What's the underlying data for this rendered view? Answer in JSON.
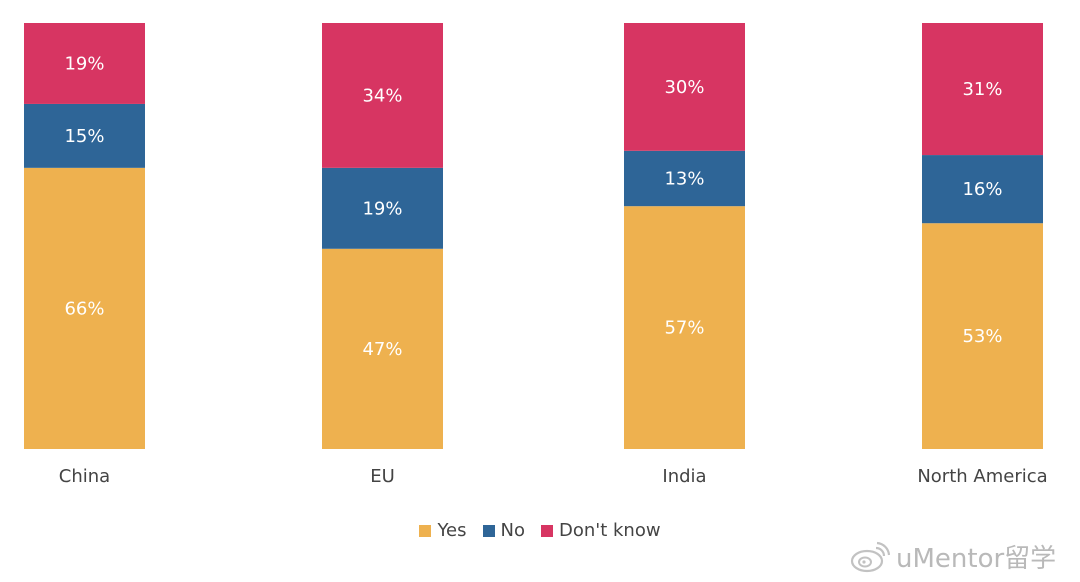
{
  "chart_data": {
    "type": "bar",
    "stacked": true,
    "percent": true,
    "categories": [
      "China",
      "EU",
      "India",
      "North America"
    ],
    "series": [
      {
        "name": "Yes",
        "values": [
          66,
          47,
          57,
          53
        ],
        "color": "#eeb14f"
      },
      {
        "name": "No",
        "values": [
          15,
          19,
          13,
          16
        ],
        "color": "#2e6597"
      },
      {
        "name": "Don't know",
        "values": [
          19,
          34,
          30,
          31
        ],
        "color": "#d73562"
      }
    ],
    "ylim": [
      0,
      100
    ],
    "grid": false,
    "legend": "bottom"
  },
  "legend": {
    "yes": "Yes",
    "no": "No",
    "dont_know": "Don't know"
  },
  "watermark": {
    "text": "uMentor留学",
    "icon": "weibo-icon"
  }
}
